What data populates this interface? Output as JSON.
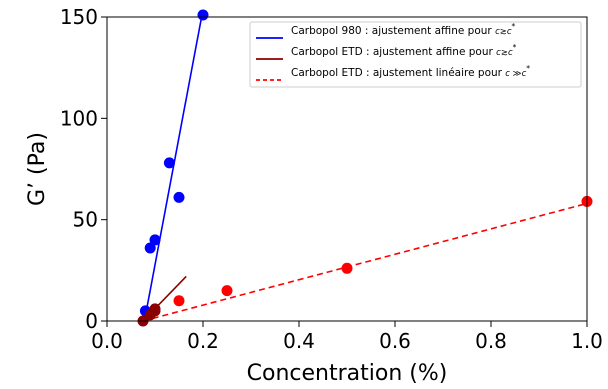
{
  "chart_data": {
    "type": "scatter",
    "title": "",
    "xlabel": "Concentration (%)",
    "ylabel": "G’ (Pa)",
    "xlim": [
      0.0,
      1.0
    ],
    "ylim": [
      0,
      150
    ],
    "x_ticks": [
      "0.0",
      "0.2",
      "0.4",
      "0.6",
      "0.8",
      "1.0"
    ],
    "y_ticks": [
      "0",
      "50",
      "100",
      "150"
    ],
    "grid": false,
    "legend_position": "top-right",
    "series": [
      {
        "kind": "points",
        "color": "#0000ff",
        "points": [
          [
            0.08,
            5
          ],
          [
            0.09,
            36
          ],
          [
            0.1,
            40
          ],
          [
            0.13,
            78
          ],
          [
            0.15,
            61
          ],
          [
            0.2,
            151
          ]
        ]
      },
      {
        "kind": "points",
        "color": "#ff0000",
        "points": [
          [
            0.15,
            10
          ],
          [
            0.25,
            15
          ],
          [
            0.5,
            26
          ],
          [
            1.0,
            59
          ]
        ]
      },
      {
        "kind": "points",
        "color": "#8b0000",
        "points": [
          [
            0.075,
            0
          ],
          [
            0.09,
            3
          ],
          [
            0.1,
            6
          ],
          [
            0.1,
            5
          ]
        ]
      },
      {
        "kind": "line",
        "name": "Carbopol 980 : ajustement affine pour c≳c*",
        "color": "#0000ff",
        "style": "solid",
        "points": [
          [
            0.078,
            0
          ],
          [
            0.205,
            160
          ]
        ]
      },
      {
        "kind": "line",
        "name": "Carbopol ETD : ajustement affine pour c≳c*",
        "color": "#8b0000",
        "style": "solid",
        "points": [
          [
            0.075,
            0
          ],
          [
            0.165,
            22
          ]
        ]
      },
      {
        "kind": "line",
        "name": "Carbopol ETD : ajustement linéaire pour c ≫c*",
        "color": "#ff0000",
        "style": "dashed",
        "points": [
          [
            0.075,
            0
          ],
          [
            1.0,
            58
          ]
        ]
      }
    ],
    "legend": [
      {
        "label": "Carbopol 980 : ajustement affine pour ",
        "math": "c≳c",
        "sup": "*",
        "color": "#0000ff",
        "style": "solid"
      },
      {
        "label": "Carbopol ETD : ajustement affine pour ",
        "math": "c≳c",
        "sup": "*",
        "color": "#8b0000",
        "style": "solid"
      },
      {
        "label": "Carbopol ETD : ajustement linéaire pour ",
        "math": "c ≫c",
        "sup": "*",
        "color": "#ff0000",
        "style": "dashed"
      }
    ]
  }
}
